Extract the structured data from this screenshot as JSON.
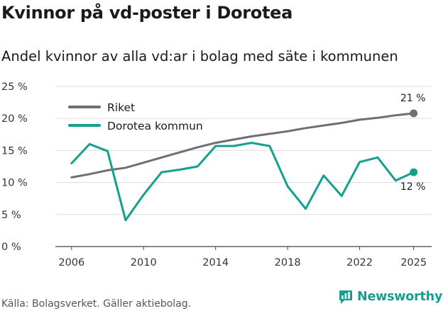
{
  "title": "Kvinnor på vd-poster i Dorotea",
  "subtitle": "Andel kvinnor av alla vd:ar i bolag med säte i kommunen",
  "source": "Källa: Bolagsverket. Gäller aktiebolag.",
  "brand": {
    "name": "Newsworthy",
    "color": "#13a08f",
    "icon": "newsworthy-logo-icon"
  },
  "chart_data": {
    "type": "line",
    "title": "Kvinnor på vd-poster i Dorotea",
    "subtitle": "Andel kvinnor av alla vd:ar i bolag med säte i kommunen",
    "xlabel": "",
    "ylabel": "",
    "xlim": [
      2005.1,
      2026
    ],
    "ylim": [
      0,
      25
    ],
    "x_ticks": [
      2006,
      2010,
      2014,
      2018,
      2022,
      2025
    ],
    "x_tick_labels": [
      "2006",
      "2010",
      "2014",
      "2018",
      "2022",
      "2025"
    ],
    "y_ticks": [
      0,
      5,
      10,
      15,
      20,
      25
    ],
    "y_tick_labels": [
      "0 %",
      "5 %",
      "10 %",
      "15 %",
      "20 %",
      "25 %"
    ],
    "grid": "horizontal",
    "legend_position": "top-left",
    "series": [
      {
        "name": "Riket",
        "color": "#6f6f73",
        "x": [
          2006,
          2007,
          2008,
          2009,
          2010,
          2011,
          2012,
          2013,
          2014,
          2015,
          2016,
          2017,
          2018,
          2019,
          2020,
          2021,
          2022,
          2023,
          2024,
          2025
        ],
        "values": [
          10.8,
          11.3,
          11.9,
          12.3,
          13.1,
          13.9,
          14.7,
          15.5,
          16.2,
          16.7,
          17.2,
          17.6,
          18.0,
          18.5,
          18.9,
          19.3,
          19.8,
          20.1,
          20.5,
          20.8
        ],
        "end_label": "21 %"
      },
      {
        "name": "Dorotea kommun",
        "color": "#13a08f",
        "x": [
          2006,
          2007,
          2008,
          2009,
          2010,
          2011,
          2012,
          2013,
          2014,
          2015,
          2016,
          2017,
          2018,
          2019,
          2020,
          2021,
          2022,
          2023,
          2024,
          2025
        ],
        "values": [
          13.0,
          16.0,
          14.9,
          4.1,
          8.1,
          11.6,
          12.0,
          12.5,
          15.7,
          15.7,
          16.2,
          15.7,
          9.4,
          5.9,
          11.1,
          7.9,
          13.2,
          13.9,
          10.3,
          11.6
        ],
        "end_label": "12 %"
      }
    ]
  }
}
